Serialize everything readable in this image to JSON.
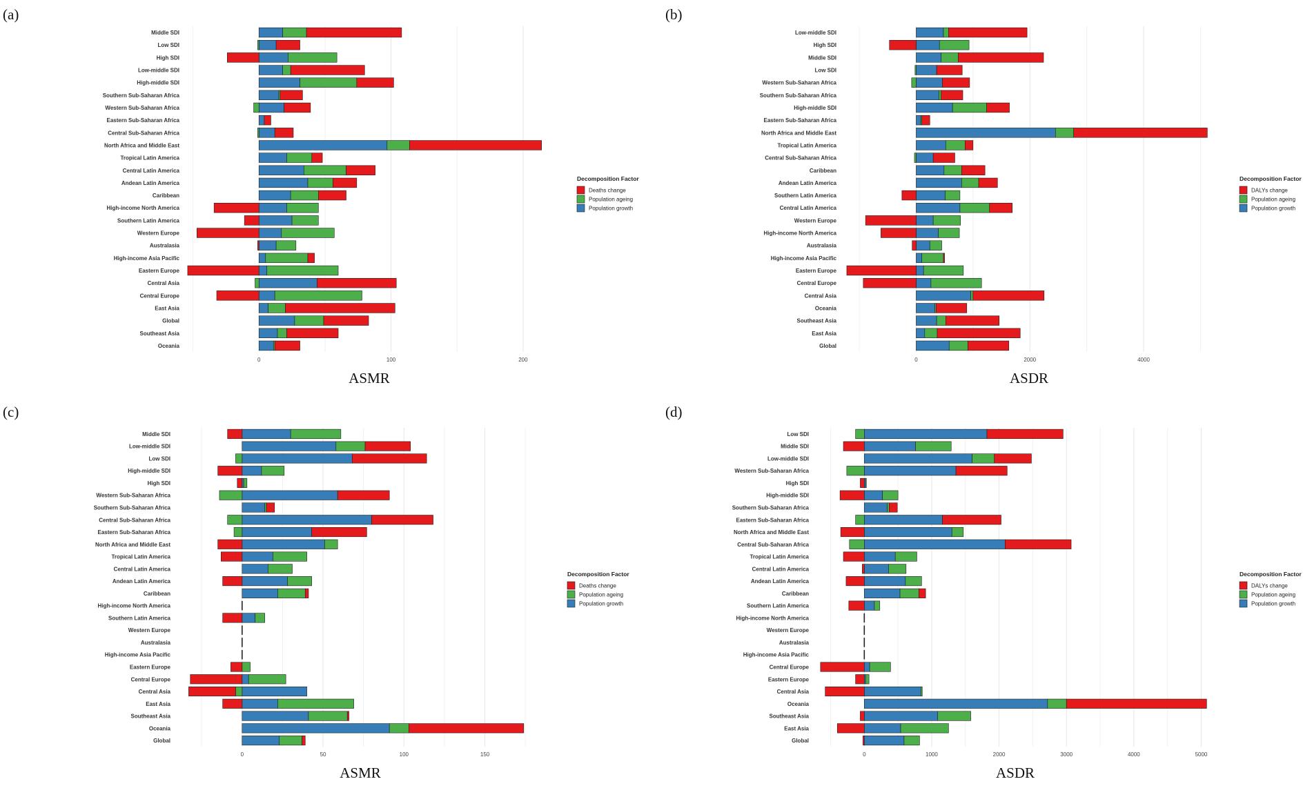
{
  "colors": {
    "change": "#E41A1C",
    "ageing": "#4DAF4A",
    "growth": "#377EB8"
  },
  "chart_data": [
    {
      "panel_label": "(a)",
      "type": "bar",
      "orientation": "horizontal",
      "stacked": "diverging",
      "xlabel": "ASMR",
      "xlim": [
        -55,
        222
      ],
      "xticks": [
        0,
        100,
        200
      ],
      "legend": {
        "title": "Decomposition Factor",
        "position": "right",
        "entries": [
          "Deaths change",
          "Population ageing",
          "Population growth"
        ]
      },
      "categories": [
        "Middle SDI",
        "Low SDI",
        "High SDI",
        "Low-middle SDI",
        "High-middle SDI",
        "Southern Sub-Saharan Africa",
        "Western Sub-Saharan Africa",
        "Eastern Sub-Saharan Africa",
        "Central Sub-Saharan Africa",
        "North Africa and Middle East",
        "Tropical Latin America",
        "Central Latin America",
        "Andean Latin America",
        "Caribbean",
        "High-income North America",
        "Southern Latin America",
        "Western Europe",
        "Australasia",
        "High-income Asia Pacific",
        "Eastern Europe",
        "Central Asia",
        "Central Europe",
        "East Asia",
        "Global",
        "Southeast Asia",
        "Oceania"
      ],
      "series": [
        {
          "name": "Population growth",
          "values": [
            18,
            13,
            22,
            18,
            31,
            15,
            19,
            4,
            12,
            97,
            21,
            34,
            37,
            24,
            21,
            25,
            17,
            13,
            5,
            6,
            44,
            12,
            7,
            27,
            14,
            11
          ]
        },
        {
          "name": "Population ageing",
          "values": [
            18,
            -1,
            37,
            6,
            43,
            1,
            -4,
            0,
            -1,
            17,
            19,
            32,
            19,
            21,
            24,
            20,
            40,
            15,
            32,
            54,
            -3,
            66,
            13,
            22,
            7,
            1
          ]
        },
        {
          "name": "Deaths change",
          "values": [
            72,
            18,
            -24,
            56,
            28,
            17,
            20,
            5,
            14,
            100,
            8,
            22,
            18,
            21,
            -34,
            -11,
            -47,
            -1,
            5,
            -54,
            60,
            -32,
            83,
            34,
            39,
            19
          ]
        }
      ]
    },
    {
      "panel_label": "(b)",
      "type": "bar",
      "orientation": "horizontal",
      "stacked": "diverging",
      "xlabel": "ASDR",
      "xlim": [
        -1280,
        5250
      ],
      "xticks": [
        0,
        2000,
        4000
      ],
      "legend": {
        "title": "Decomposition Factor",
        "position": "right",
        "entries": [
          "DALYs change",
          "Population ageing",
          "Population growth"
        ]
      },
      "categories": [
        "Low-middle SDI",
        "High SDI",
        "Middle SDI",
        "Low SDI",
        "Western Sub-Saharan Africa",
        "Southern Sub-Saharan Africa",
        "High-middle SDI",
        "Eastern Sub-Saharan Africa",
        "North Africa and Middle East",
        "Tropical Latin America",
        "Central Sub-Saharan Africa",
        "Caribbean",
        "Andean Latin America",
        "Southern Latin America",
        "Central Latin America",
        "Western Europe",
        "High-income North America",
        "Australasia",
        "High-income Asia Pacific",
        "Eastern Europe",
        "Central Europe",
        "Central Asia",
        "Oceania",
        "Southeast Asia",
        "East Asia",
        "Global"
      ],
      "series": [
        {
          "name": "Population growth",
          "values": [
            480,
            410,
            440,
            360,
            460,
            400,
            640,
            80,
            2450,
            520,
            300,
            490,
            800,
            510,
            770,
            300,
            390,
            240,
            100,
            130,
            260,
            960,
            330,
            360,
            150,
            580
          ]
        },
        {
          "name": "Population ageing",
          "values": [
            90,
            520,
            300,
            -20,
            -80,
            40,
            600,
            20,
            320,
            340,
            -30,
            310,
            300,
            260,
            520,
            480,
            370,
            210,
            380,
            700,
            890,
            40,
            20,
            160,
            220,
            330
          ]
        },
        {
          "name": "DALYs change",
          "values": [
            1380,
            -470,
            1500,
            450,
            480,
            380,
            400,
            140,
            2350,
            140,
            380,
            410,
            330,
            -250,
            400,
            -890,
            -620,
            -70,
            20,
            -1220,
            -930,
            1250,
            540,
            940,
            1460,
            720
          ]
        }
      ]
    },
    {
      "panel_label": "(c)",
      "type": "bar",
      "orientation": "horizontal",
      "stacked": "diverging",
      "xlabel": "ASMR",
      "xlim": [
        -40,
        186
      ],
      "xticks": [
        0,
        50,
        100,
        150
      ],
      "legend": {
        "title": "Decomposition Factor",
        "position": "right",
        "entries": [
          "Deaths change",
          "Population ageing",
          "Population growth"
        ]
      },
      "categories": [
        "Middle SDI",
        "Low-middle SDI",
        "Low SDI",
        "High-middle SDI",
        "High SDI",
        "Western Sub-Saharan Africa",
        "Southern Sub-Saharan Africa",
        "Central Sub-Saharan Africa",
        "Eastern Sub-Saharan Africa",
        "North Africa and Middle East",
        "Tropical Latin America",
        "Central Latin America",
        "Andean Latin America",
        "Caribbean",
        "High-income North America",
        "Southern Latin America",
        "Western Europe",
        "Australasia",
        "High-income Asia Pacific",
        "Eastern Europe",
        "Central Europe",
        "Central Asia",
        "East Asia",
        "Southeast Asia",
        "Oceania",
        "Global"
      ],
      "series": [
        {
          "name": "Population growth",
          "values": [
            30,
            58,
            68,
            12,
            1,
            59,
            14,
            80,
            43,
            51,
            19,
            16,
            28,
            22,
            0,
            8,
            0,
            0,
            0,
            0,
            4,
            40,
            22,
            41,
            91,
            23
          ]
        },
        {
          "name": "Population ageing",
          "values": [
            31,
            18,
            -4,
            14,
            2,
            -14,
            1,
            -9,
            -5,
            8,
            21,
            15,
            15,
            17,
            0,
            6,
            0,
            0,
            0,
            5,
            23,
            -4,
            47,
            24,
            12,
            14
          ]
        },
        {
          "name": "Deaths change",
          "values": [
            -9,
            28,
            46,
            -15,
            -3,
            32,
            5,
            38,
            34,
            -15,
            -13,
            0,
            -12,
            2,
            0,
            -12,
            0,
            0,
            0,
            -7,
            -32,
            -29,
            -12,
            1,
            71,
            2
          ]
        }
      ]
    },
    {
      "panel_label": "(d)",
      "type": "bar",
      "orientation": "horizontal",
      "stacked": "diverging",
      "xlabel": "ASDR",
      "xlim": [
        -720,
        5200
      ],
      "xticks": [
        0,
        1000,
        2000,
        3000,
        4000,
        5000
      ],
      "legend": {
        "title": "Decomposition Factor",
        "position": "right",
        "entries": [
          "DALYs change",
          "Population ageing",
          "Population growth"
        ]
      },
      "categories": [
        "Low SDI",
        "Middle SDI",
        "Low-middle SDI",
        "Western Sub-Saharan Africa",
        "High SDI",
        "High-middle SDI",
        "Southern Sub-Saharan Africa",
        "Eastern Sub-Saharan Africa",
        "North Africa and Middle East",
        "Central Sub-Saharan Africa",
        "Tropical Latin America",
        "Central Latin America",
        "Andean Latin America",
        "Caribbean",
        "Southern Latin America",
        "High-income North America",
        "Western Europe",
        "Australasia",
        "High-income Asia Pacific",
        "Central Europe",
        "Eastern Europe",
        "Central Asia",
        "Oceania",
        "Southeast Asia",
        "East Asia",
        "Global"
      ],
      "series": [
        {
          "name": "Population growth",
          "values": [
            1820,
            760,
            1600,
            1360,
            20,
            270,
            340,
            1160,
            1300,
            2090,
            460,
            360,
            610,
            530,
            150,
            0,
            0,
            0,
            0,
            80,
            20,
            840,
            2720,
            1090,
            540,
            590
          ]
        },
        {
          "name": "Population ageing",
          "values": [
            -130,
            530,
            330,
            -260,
            10,
            230,
            30,
            -130,
            170,
            -220,
            320,
            260,
            240,
            280,
            80,
            0,
            0,
            0,
            0,
            310,
            50,
            20,
            280,
            490,
            710,
            230
          ]
        },
        {
          "name": "DALYs change",
          "values": [
            1130,
            -310,
            550,
            760,
            -60,
            -360,
            120,
            870,
            -350,
            980,
            -310,
            -30,
            -270,
            100,
            -230,
            0,
            0,
            0,
            0,
            -650,
            -130,
            -580,
            2080,
            -60,
            -400,
            -20
          ]
        }
      ]
    }
  ]
}
